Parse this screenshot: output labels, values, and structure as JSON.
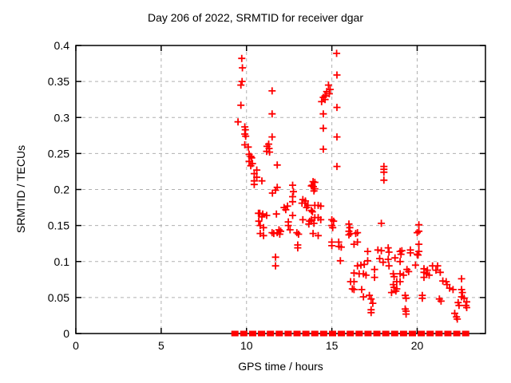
{
  "chart_data": {
    "type": "scatter",
    "title": "Day 206 of 2022, SRMTID for receiver dgar",
    "xlabel": "GPS time / hours",
    "ylabel": "SRMTID / TECUs",
    "xlim": [
      0,
      24
    ],
    "ylim": [
      0,
      0.4
    ],
    "xtick_values": [
      0,
      5,
      10,
      15,
      20
    ],
    "xtick_labels": [
      "0",
      "5",
      "10",
      "15",
      "20"
    ],
    "ytick_values": [
      0,
      0.05,
      0.1,
      0.15,
      0.2,
      0.25,
      0.3,
      0.35,
      0.4
    ],
    "ytick_labels": [
      "0",
      "0.05",
      "0.1",
      "0.15",
      "0.2",
      "0.25",
      "0.3",
      "0.35",
      "0.4"
    ],
    "grid": {
      "show": true,
      "style": "dashed",
      "color": "#b0b0b0"
    },
    "legend": "none",
    "background_color": "#ffffff",
    "border_color": "#000000",
    "marker": {
      "glyph": "plus",
      "color": "#ff0000",
      "size": 9
    },
    "series": [
      {
        "name": "SRMTID",
        "points": [
          [
            9.5,
            0.294
          ],
          [
            9.67,
            0.345
          ],
          [
            9.67,
            0.317
          ],
          [
            9.72,
            0.382
          ],
          [
            9.74,
            0.35
          ],
          [
            9.76,
            0.369
          ],
          [
            9.9,
            0.287
          ],
          [
            9.9,
            0.277
          ],
          [
            9.9,
            0.262
          ],
          [
            9.93,
            0.283
          ],
          [
            9.95,
            0.274
          ],
          [
            10.1,
            0.259
          ],
          [
            10.15,
            0.249
          ],
          [
            10.15,
            0.239
          ],
          [
            10.25,
            0.246
          ],
          [
            10.25,
            0.233
          ],
          [
            10.3,
            0.244
          ],
          [
            10.35,
            0.236
          ],
          [
            10.45,
            0.222
          ],
          [
            10.45,
            0.212
          ],
          [
            10.45,
            0.207
          ],
          [
            10.6,
            0.227
          ],
          [
            10.6,
            0.217
          ],
          [
            10.9,
            0.212
          ],
          [
            10.7,
            0.167
          ],
          [
            10.78,
            0.167
          ],
          [
            10.72,
            0.156
          ],
          [
            10.8,
            0.15
          ],
          [
            10.8,
            0.139
          ],
          [
            10.9,
            0.162
          ],
          [
            10.95,
            0.166
          ],
          [
            11.0,
            0.147
          ],
          [
            11.0,
            0.136
          ],
          [
            11.18,
            0.164
          ],
          [
            11.5,
            0.14
          ],
          [
            11.6,
            0.139
          ],
          [
            11.75,
            0.166
          ],
          [
            11.7,
            0.106
          ],
          [
            11.7,
            0.094
          ],
          [
            11.8,
            0.14
          ],
          [
            11.9,
            0.144
          ],
          [
            11.95,
            0.138
          ],
          [
            12.0,
            0.142
          ],
          [
            11.18,
            0.253
          ],
          [
            11.2,
            0.26
          ],
          [
            11.3,
            0.263
          ],
          [
            11.32,
            0.257
          ],
          [
            11.35,
            0.252
          ],
          [
            11.5,
            0.337
          ],
          [
            11.5,
            0.305
          ],
          [
            11.5,
            0.273
          ],
          [
            11.52,
            0.195
          ],
          [
            11.7,
            0.199
          ],
          [
            11.8,
            0.234
          ],
          [
            11.8,
            0.203
          ],
          [
            12.2,
            0.175
          ],
          [
            12.3,
            0.172
          ],
          [
            12.4,
            0.177
          ],
          [
            12.45,
            0.155
          ],
          [
            12.45,
            0.15
          ],
          [
            12.55,
            0.144
          ],
          [
            12.7,
            0.206
          ],
          [
            12.7,
            0.19
          ],
          [
            12.7,
            0.183
          ],
          [
            12.7,
            0.164
          ],
          [
            12.75,
            0.197
          ],
          [
            12.95,
            0.14
          ],
          [
            13.0,
            0.123
          ],
          [
            13.0,
            0.119
          ],
          [
            13.05,
            0.138
          ],
          [
            13.25,
            0.181
          ],
          [
            13.3,
            0.186
          ],
          [
            13.3,
            0.158
          ],
          [
            13.42,
            0.181
          ],
          [
            13.45,
            0.184
          ],
          [
            13.52,
            0.175
          ],
          [
            13.6,
            0.178
          ],
          [
            13.65,
            0.152
          ],
          [
            13.7,
            0.156
          ],
          [
            13.8,
            0.205
          ],
          [
            13.8,
            0.171
          ],
          [
            13.8,
            0.158
          ],
          [
            13.85,
            0.206
          ],
          [
            13.86,
            0.169
          ],
          [
            13.9,
            0.211
          ],
          [
            13.9,
            0.139
          ],
          [
            13.92,
            0.204
          ],
          [
            13.95,
            0.198
          ],
          [
            13.95,
            0.153
          ],
          [
            14.0,
            0.21
          ],
          [
            14.0,
            0.201
          ],
          [
            14.0,
            0.178
          ],
          [
            14.0,
            0.161
          ],
          [
            14.2,
            0.178
          ],
          [
            14.2,
            0.161
          ],
          [
            14.2,
            0.136
          ],
          [
            14.35,
            0.177
          ],
          [
            14.35,
            0.158
          ],
          [
            14.4,
            0.322
          ],
          [
            14.5,
            0.328
          ],
          [
            14.5,
            0.305
          ],
          [
            14.5,
            0.285
          ],
          [
            14.5,
            0.256
          ],
          [
            14.6,
            0.33
          ],
          [
            14.6,
            0.325
          ],
          [
            14.7,
            0.336
          ],
          [
            14.8,
            0.345
          ],
          [
            14.85,
            0.333
          ],
          [
            14.9,
            0.339
          ],
          [
            15.28,
            0.389
          ],
          [
            15.3,
            0.359
          ],
          [
            15.3,
            0.314
          ],
          [
            15.3,
            0.273
          ],
          [
            15.3,
            0.232
          ],
          [
            15.0,
            0.158
          ],
          [
            15.0,
            0.15
          ],
          [
            15.0,
            0.127
          ],
          [
            15.0,
            0.122
          ],
          [
            15.05,
            0.147
          ],
          [
            15.1,
            0.156
          ],
          [
            15.4,
            0.127
          ],
          [
            15.42,
            0.121
          ],
          [
            15.5,
            0.101
          ],
          [
            15.55,
            0.12
          ],
          [
            16.0,
            0.152
          ],
          [
            16.0,
            0.142
          ],
          [
            16.0,
            0.137
          ],
          [
            16.05,
            0.147
          ],
          [
            16.1,
            0.139
          ],
          [
            16.1,
            0.072
          ],
          [
            16.2,
            0.062
          ],
          [
            16.3,
            0.124
          ],
          [
            16.3,
            0.084
          ],
          [
            16.3,
            0.072
          ],
          [
            16.3,
            0.061
          ],
          [
            16.4,
            0.139
          ],
          [
            16.5,
            0.14
          ],
          [
            16.5,
            0.127
          ],
          [
            16.5,
            0.094
          ],
          [
            16.6,
            0.083
          ],
          [
            16.7,
            0.095
          ],
          [
            16.75,
            0.061
          ],
          [
            16.85,
            0.083
          ],
          [
            16.85,
            0.051
          ],
          [
            16.9,
            0.096
          ],
          [
            17.0,
            0.081
          ],
          [
            17.1,
            0.114
          ],
          [
            17.1,
            0.101
          ],
          [
            17.2,
            0.053
          ],
          [
            17.3,
            0.048
          ],
          [
            17.3,
            0.033
          ],
          [
            17.3,
            0.029
          ],
          [
            17.4,
            0.042
          ],
          [
            17.5,
            0.089
          ],
          [
            17.5,
            0.078
          ],
          [
            17.7,
            0.116
          ],
          [
            17.8,
            0.104
          ],
          [
            17.9,
            0.153
          ],
          [
            17.9,
            0.115
          ],
          [
            18.0,
            0.099
          ],
          [
            18.05,
            0.232
          ],
          [
            18.05,
            0.228
          ],
          [
            18.05,
            0.224
          ],
          [
            18.05,
            0.213
          ],
          [
            18.3,
            0.119
          ],
          [
            18.3,
            0.103
          ],
          [
            18.35,
            0.113
          ],
          [
            18.35,
            0.094
          ],
          [
            18.5,
            0.057
          ],
          [
            18.6,
            0.083
          ],
          [
            18.6,
            0.068
          ],
          [
            18.65,
            0.079
          ],
          [
            18.65,
            0.064
          ],
          [
            18.7,
            0.105
          ],
          [
            18.75,
            0.059
          ],
          [
            18.8,
            0.072
          ],
          [
            18.8,
            0.062
          ],
          [
            19.0,
            0.114
          ],
          [
            19.0,
            0.1
          ],
          [
            19.0,
            0.083
          ],
          [
            19.0,
            0.072
          ],
          [
            19.05,
            0.11
          ],
          [
            19.2,
            0.081
          ],
          [
            19.1,
            0.115
          ],
          [
            19.3,
            0.053
          ],
          [
            19.3,
            0.034
          ],
          [
            19.35,
            0.049
          ],
          [
            19.35,
            0.031
          ],
          [
            19.35,
            0.027
          ],
          [
            19.4,
            0.089
          ],
          [
            19.5,
            0.086
          ],
          [
            19.6,
            0.116
          ],
          [
            19.6,
            0.112
          ],
          [
            19.9,
            0.095
          ],
          [
            20.0,
            0.14
          ],
          [
            20.0,
            0.11
          ],
          [
            20.05,
            0.109
          ],
          [
            20.1,
            0.151
          ],
          [
            20.1,
            0.142
          ],
          [
            20.1,
            0.124
          ],
          [
            20.1,
            0.114
          ],
          [
            20.3,
            0.053
          ],
          [
            20.3,
            0.049
          ],
          [
            20.4,
            0.09
          ],
          [
            20.4,
            0.085
          ],
          [
            20.4,
            0.078
          ],
          [
            20.55,
            0.083
          ],
          [
            20.6,
            0.088
          ],
          [
            20.7,
            0.081
          ],
          [
            20.9,
            0.094
          ],
          [
            21.1,
            0.088
          ],
          [
            21.2,
            0.094
          ],
          [
            21.3,
            0.048
          ],
          [
            21.35,
            0.085
          ],
          [
            21.4,
            0.045
          ],
          [
            21.5,
            0.073
          ],
          [
            21.7,
            0.072
          ],
          [
            21.75,
            0.068
          ],
          [
            21.9,
            0.063
          ],
          [
            22.1,
            0.061
          ],
          [
            22.2,
            0.028
          ],
          [
            22.3,
            0.023
          ],
          [
            22.35,
            0.02
          ],
          [
            22.4,
            0.043
          ],
          [
            22.45,
            0.039
          ],
          [
            22.6,
            0.076
          ],
          [
            22.6,
            0.061
          ],
          [
            22.6,
            0.051
          ],
          [
            22.65,
            0.057
          ],
          [
            22.75,
            0.049
          ],
          [
            22.85,
            0.039
          ],
          [
            22.9,
            0.044
          ],
          [
            22.9,
            0.036
          ]
        ]
      }
    ],
    "baseline_row": {
      "y": 0,
      "x_start": 9.32,
      "x_end": 23.05,
      "blob_step": 0.52,
      "note": "dense row of zero-value markers along the x axis"
    }
  }
}
